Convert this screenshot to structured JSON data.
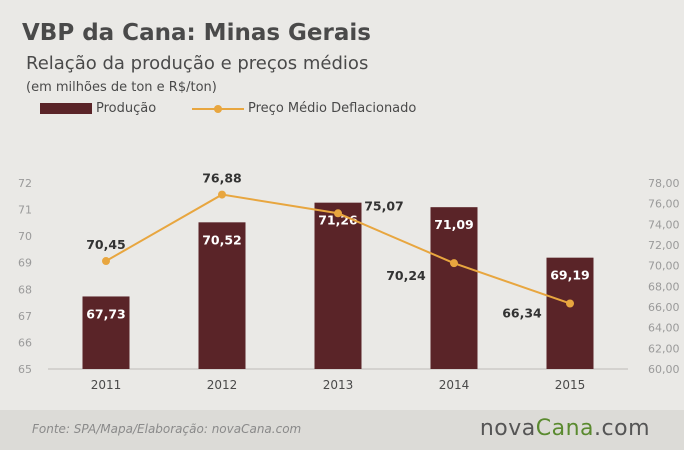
{
  "title": "VBP da Cana: Minas Gerais",
  "subtitle": "Relação da produção e preços médios",
  "units_note": "(em milhões de ton e R$/ton)",
  "legend": {
    "bar_label": "Produção",
    "line_label": "Preço Médio Deflacionado"
  },
  "colors": {
    "bar": "#5a2428",
    "line": "#e8a63f",
    "background": "#eae9e6"
  },
  "chart_data": {
    "type": "bar",
    "categories": [
      "2011",
      "2012",
      "2013",
      "2014",
      "2015"
    ],
    "series": [
      {
        "name": "Produção",
        "type": "bar",
        "axis": "left",
        "values": [
          67.73,
          70.52,
          71.26,
          71.09,
          69.19
        ],
        "labels": [
          "67,73",
          "70,52",
          "71,26",
          "71,09",
          "69,19"
        ]
      },
      {
        "name": "Preço Médio Deflacionado",
        "type": "line",
        "axis": "right",
        "values": [
          70.45,
          76.88,
          75.07,
          70.24,
          66.34
        ],
        "labels": [
          "70,45",
          "76,88",
          "75,07",
          "70,24",
          "66,34"
        ]
      }
    ],
    "y_left": {
      "ylim": [
        65,
        72
      ],
      "ticks": [
        65,
        66,
        67,
        68,
        69,
        70,
        71,
        72
      ],
      "tick_labels": [
        "65",
        "66",
        "67",
        "68",
        "69",
        "70",
        "71",
        "72"
      ]
    },
    "y_right": {
      "ylim": [
        60,
        78
      ],
      "ticks": [
        60,
        62,
        64,
        66,
        68,
        70,
        72,
        74,
        76,
        78
      ],
      "tick_labels": [
        "60,00",
        "62,00",
        "64,00",
        "66,00",
        "68,00",
        "70,00",
        "72,00",
        "74,00",
        "76,00",
        "78,00"
      ]
    },
    "grid": false,
    "legend_position": "top-left"
  },
  "footer": {
    "source": "Fonte: SPA/Mapa/Elaboração: novaCana.com",
    "logo_prefix": "nova",
    "logo_brand": "Cana",
    "logo_suffix": ".com"
  }
}
